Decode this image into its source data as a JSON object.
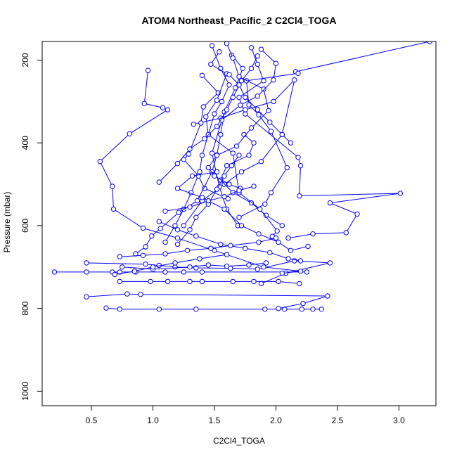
{
  "chart_data": {
    "type": "scatter",
    "title": "ATOM4 Northeast_Pacific_2 C2Cl4_TOGA",
    "xlabel": "C2Cl4_TOGA",
    "ylabel": "Pressure (mbar)",
    "xlim": [
      0.1,
      3.3
    ],
    "ylim": [
      1035,
      155
    ],
    "y_reversed": true,
    "xticks": [
      0.5,
      1.0,
      1.5,
      2.0,
      2.5,
      3.0
    ],
    "xtick_labels": [
      "0.5",
      "1.0",
      "1.5",
      "2.0",
      "2.5",
      "3.0"
    ],
    "yticks": [
      200,
      400,
      600,
      800,
      1000
    ],
    "ytick_labels": [
      "200",
      "400",
      "600",
      "800",
      "1000"
    ],
    "grid": false,
    "legend": "none",
    "series_color": "#0000ff",
    "marker": "open-circle",
    "profiles": [
      {
        "x": [
          0.62,
          0.73,
          1.05,
          1.35,
          1.91,
          2.07,
          2.21,
          2.3,
          2.37
        ],
        "y": [
          799,
          802,
          802,
          802,
          802,
          802,
          802,
          802,
          802
        ]
      },
      {
        "x": [
          0.46,
          0.79,
          0.9,
          2.42,
          2.22,
          2.02
        ],
        "y": [
          772,
          765,
          766,
          770,
          788,
          800
        ]
      },
      {
        "x": [
          0.2,
          0.46,
          0.67,
          0.73,
          0.86,
          1.1,
          1.25,
          1.4,
          2.25
        ],
        "y": [
          712,
          712,
          712,
          712,
          712,
          712,
          712,
          712,
          712
        ]
      },
      {
        "x": [
          0.46,
          0.94,
          1.05,
          1.18,
          1.35,
          1.63,
          1.85,
          2.15,
          2.44,
          2.08,
          1.88
        ],
        "y": [
          690,
          693,
          696,
          700,
          702,
          703,
          705,
          685,
          690,
          715,
          740
        ]
      },
      {
        "x": [
          0.73,
          0.98,
          1.12,
          1.3,
          1.4,
          1.65,
          1.82,
          2.02,
          2.19
        ],
        "y": [
          735,
          735,
          735,
          735,
          735,
          735,
          735,
          735,
          740
        ]
      },
      {
        "x": [
          0.96,
          0.93,
          1.08,
          1.12,
          0.81,
          0.57,
          0.67,
          0.68,
          0.92,
          1.2,
          1.5,
          1.9,
          2.2,
          2.05
        ],
        "y": [
          225,
          305,
          315,
          320,
          378,
          445,
          505,
          560,
          606,
          630,
          660,
          700,
          710,
          715
        ]
      },
      {
        "x": [
          1.48,
          1.55,
          1.62,
          1.56,
          1.5,
          1.45,
          1.4,
          1.38,
          1.31,
          1.25,
          1.18,
          1.1
        ],
        "y": [
          165,
          220,
          260,
          300,
          330,
          380,
          430,
          470,
          520,
          560,
          600,
          640
        ]
      },
      {
        "x": [
          1.8,
          1.85,
          1.9,
          1.7,
          1.75,
          2.18,
          2.2,
          2.19,
          3.01,
          2.44,
          2.66,
          2.57,
          2.3,
          2.1
        ],
        "y": [
          170,
          210,
          250,
          290,
          330,
          435,
          455,
          528,
          522,
          545,
          572,
          617,
          620,
          630
        ]
      },
      {
        "x": [
          3.25,
          2.16,
          2.18,
          1.76,
          1.78,
          1.86,
          1.96,
          2.09,
          1.96,
          1.91,
          1.7
        ],
        "y": [
          155,
          228,
          232,
          250,
          308,
          332,
          372,
          460,
          520,
          548,
          580
        ]
      },
      {
        "x": [
          1.33,
          1.55,
          1.75,
          1.98,
          2.15,
          2.05,
          1.88,
          1.72,
          1.58,
          1.4,
          1.25
        ],
        "y": [
          355,
          340,
          320,
          300,
          248,
          380,
          445,
          470,
          500,
          540,
          600
        ]
      },
      {
        "x": [
          1.74,
          1.82,
          1.78,
          1.6,
          1.55,
          1.65,
          1.8,
          1.92,
          2.05
        ],
        "y": [
          380,
          400,
          430,
          455,
          490,
          520,
          545,
          575,
          600
        ]
      },
      {
        "x": [
          1.4,
          1.53,
          1.41,
          1.39,
          1.29,
          1.25,
          1.37,
          1.42,
          1.61
        ],
        "y": [
          237,
          279,
          313,
          352,
          427,
          440,
          480,
          510,
          535
        ]
      },
      {
        "x": [
          1.64,
          1.73,
          1.67,
          1.58,
          1.55,
          1.52,
          1.48,
          1.36,
          1.21,
          1.06,
          0.99,
          0.94,
          0.86
        ],
        "y": [
          188,
          220,
          267,
          325,
          380,
          429,
          470,
          540,
          568,
          607,
          625,
          651,
          668
        ]
      },
      {
        "x": [
          1.6,
          1.65,
          1.7,
          1.9,
          1.94,
          1.8,
          1.68,
          1.52,
          1.45,
          1.5,
          1.62,
          1.71
        ],
        "y": [
          160,
          195,
          240,
          270,
          322,
          364,
          408,
          430,
          460,
          480,
          500,
          510
        ]
      },
      {
        "x": [
          1.54,
          1.47,
          1.6,
          1.52,
          1.43,
          1.45,
          1.65,
          1.7,
          1.87,
          2.01,
          1.97
        ],
        "y": [
          180,
          210,
          233,
          297,
          337,
          380,
          425,
          520,
          560,
          613,
          626
        ]
      },
      {
        "x": [
          1.88,
          2.0,
          1.98,
          1.85,
          1.71,
          1.56,
          1.48,
          1.54,
          1.6,
          1.69
        ],
        "y": [
          174,
          208,
          248,
          287,
          309,
          345,
          425,
          506,
          560,
          600
        ]
      },
      {
        "x": [
          1.52,
          1.32,
          1.2,
          1.4,
          1.58,
          1.72,
          1.86,
          2.02,
          2.12,
          2.26
        ],
        "y": [
          470,
          480,
          510,
          532,
          560,
          600,
          620,
          640,
          660,
          650
        ]
      },
      {
        "x": [
          1.05,
          1.2,
          1.35,
          1.55,
          1.75,
          1.95,
          2.1,
          2.2
        ],
        "y": [
          590,
          610,
          625,
          645,
          655,
          665,
          680,
          685
        ]
      },
      {
        "x": [
          0.73,
          0.92,
          1.1,
          1.28,
          1.47,
          1.63,
          1.86,
          2.0
        ],
        "y": [
          675,
          672,
          668,
          660,
          655,
          648,
          640,
          630
        ]
      },
      {
        "x": [
          0.75,
          1.0,
          1.3,
          1.45,
          1.6,
          1.78,
          1.92
        ],
        "y": [
          700,
          705,
          700,
          695,
          698,
          695,
          690
        ]
      },
      {
        "x": [
          1.05,
          1.2,
          1.3,
          1.42,
          1.52,
          1.6,
          1.65,
          1.72,
          1.8,
          1.85
        ],
        "y": [
          495,
          450,
          415,
          390,
          360,
          320,
          290,
          250,
          220,
          190
        ]
      },
      {
        "x": [
          1.2,
          1.3,
          1.35,
          1.45,
          1.52,
          1.58,
          1.64,
          1.7
        ],
        "y": [
          645,
          610,
          580,
          548,
          512,
          480,
          455,
          430
        ]
      },
      {
        "x": [
          0.69,
          0.85,
          1.0,
          1.18,
          1.38,
          1.6
        ],
        "y": [
          718,
          710,
          700,
          690,
          680,
          670
        ]
      },
      {
        "x": [
          1.1,
          1.3,
          1.45,
          1.58,
          1.7,
          1.82
        ],
        "y": [
          565,
          555,
          540,
          530,
          515,
          505
        ]
      },
      {
        "x": [
          1.62,
          1.7,
          1.75,
          1.85,
          1.95,
          2.05,
          2.12
        ],
        "y": [
          235,
          260,
          290,
          320,
          350,
          380,
          400
        ]
      }
    ]
  }
}
